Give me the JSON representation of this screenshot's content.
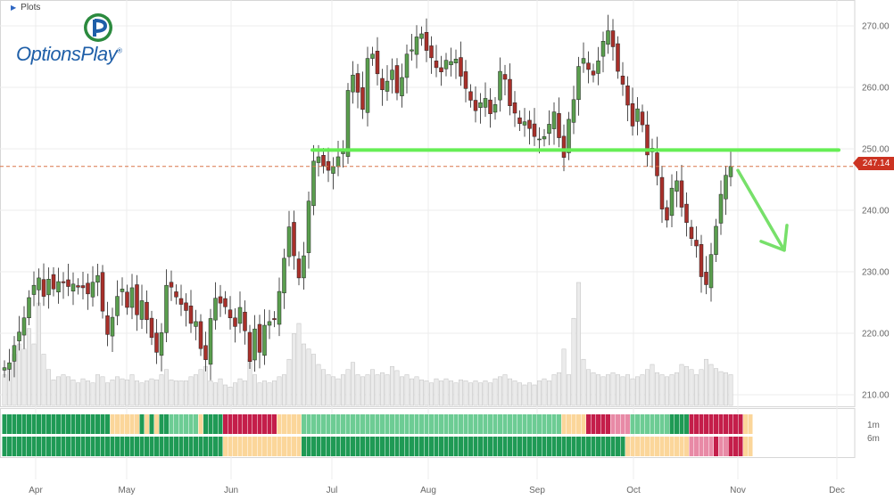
{
  "toolbar": {
    "plots_label": "Plots"
  },
  "logo": {
    "name": "OptionsPlay",
    "registered_mark": "®"
  },
  "current_price_label": "247.14",
  "colors": {
    "up": "#5a9e4e",
    "down": "#a8302a",
    "support_line": "#66ee55",
    "price_line": "#d9774a",
    "arrow": "#77e06a",
    "volume": "#ebebeb",
    "strong_bull": "#1f9a55",
    "bull": "#6dcc94",
    "neutral": "#fbd69a",
    "bear": "#e88aa6",
    "strong_bear": "#c41e4a"
  },
  "chart_data": {
    "type": "candlestick",
    "x_tick_labels": [
      "Apr",
      "May",
      "Jun",
      "Jul",
      "Aug",
      "Sep",
      "Oct",
      "Nov",
      "Dec"
    ],
    "y_ticks": [
      210,
      220,
      230,
      240,
      250,
      260,
      270
    ],
    "y_tick_labels": [
      "210.00",
      "220.00",
      "230.00",
      "240.00",
      "250.00",
      "260.00",
      "270.00"
    ],
    "ylim": [
      208.5,
      272.5
    ],
    "grid": true,
    "last_price": 247.14,
    "resistance_level": 249.8,
    "forecast_arrow": {
      "from_price": 246.5,
      "to_price": 233.5,
      "direction": "down"
    },
    "closes": [
      214.4,
      215.2,
      218.0,
      220.2,
      222.5,
      225.8,
      227.8,
      229.0,
      226.0,
      228.8,
      227.2,
      228.4,
      228.2,
      227.6,
      228.0,
      227.5,
      227.4,
      226.4,
      228.3,
      229.4,
      223.6,
      219.8,
      222.6,
      226.0,
      227.2,
      224.2,
      227.4,
      223.0,
      225.3,
      222.2,
      219.3,
      216.9,
      220.1,
      227.8,
      227.5,
      225.9,
      224.7,
      223.7,
      221.6,
      221.9,
      217.5,
      215.7,
      222.4,
      225.7,
      224.9,
      224.3,
      222.5,
      221.1,
      224.2,
      220.4,
      215.4,
      220.7,
      216.9,
      221.3,
      221.9,
      222.2,
      226.8,
      232.2,
      237.3,
      232.6,
      229.0,
      232.6,
      241.5,
      248.0,
      248.7,
      247.2,
      246.5,
      247.1,
      248.7,
      249.5,
      259.5,
      262.0,
      259.2,
      256.4,
      264.7,
      265.4,
      262.2,
      259.6,
      261.0,
      262.8,
      259.1,
      261.6,
      265.4,
      266.1,
      268.2,
      268.7,
      266.0,
      264.8,
      263.2,
      262.5,
      264.4,
      264.2,
      264.6,
      261.8,
      259.8,
      257.9,
      256.2,
      257.5,
      258.2,
      255.7,
      257.2,
      262.6,
      261.3,
      257.0,
      255.8,
      254.1,
      254.4,
      253.3,
      252.0,
      251.6,
      252.0,
      254.0,
      256.0,
      251.8,
      248.6,
      254.8,
      258.0,
      263.4,
      264.7,
      262.9,
      262.0,
      264.3,
      267.5,
      269.2,
      266.6,
      262.6,
      260.5,
      257.1,
      253.7,
      256.5,
      253.9,
      249.0,
      250.1,
      245.6,
      240.2,
      238.4,
      243.6,
      244.8,
      240.5,
      238.0,
      235.4,
      234.2,
      229.2,
      227.9,
      232.8,
      237.4,
      242.6,
      245.7,
      247.14
    ],
    "volume_relative": [
      0.3,
      0.35,
      0.5,
      0.6,
      0.55,
      0.75,
      0.6,
      1.0,
      0.5,
      0.35,
      0.25,
      0.28,
      0.3,
      0.28,
      0.25,
      0.22,
      0.26,
      0.24,
      0.22,
      0.3,
      0.28,
      0.22,
      0.25,
      0.28,
      0.26,
      0.25,
      0.3,
      0.24,
      0.22,
      0.24,
      0.26,
      0.25,
      0.3,
      0.35,
      0.25,
      0.24,
      0.24,
      0.24,
      0.28,
      0.3,
      0.35,
      0.38,
      0.24,
      0.22,
      0.26,
      0.2,
      0.18,
      0.22,
      0.26,
      0.24,
      0.45,
      0.3,
      0.22,
      0.24,
      0.22,
      0.24,
      0.28,
      0.3,
      0.45,
      0.7,
      0.8,
      0.6,
      0.55,
      0.5,
      0.4,
      0.35,
      0.3,
      0.28,
      0.26,
      0.3,
      0.35,
      0.42,
      0.3,
      0.28,
      0.3,
      0.35,
      0.3,
      0.32,
      0.3,
      0.38,
      0.34,
      0.28,
      0.3,
      0.26,
      0.28,
      0.25,
      0.24,
      0.22,
      0.26,
      0.24,
      0.26,
      0.24,
      0.22,
      0.25,
      0.24,
      0.22,
      0.24,
      0.22,
      0.24,
      0.22,
      0.26,
      0.28,
      0.3,
      0.26,
      0.24,
      0.22,
      0.2,
      0.22,
      0.2,
      0.24,
      0.26,
      0.24,
      0.3,
      0.32,
      0.55,
      0.3,
      0.85,
      1.2,
      0.45,
      0.35,
      0.32,
      0.3,
      0.28,
      0.3,
      0.32,
      0.3,
      0.28,
      0.3,
      0.26,
      0.28,
      0.3,
      0.35,
      0.4,
      0.32,
      0.3,
      0.28,
      0.3,
      0.32,
      0.4,
      0.38,
      0.35,
      0.3,
      0.35,
      0.45,
      0.4,
      0.36,
      0.33,
      0.32,
      0.3
    ],
    "signal_row_labels": [
      "1m",
      "6m"
    ],
    "signal_1m": [
      4,
      4,
      4,
      4,
      4,
      4,
      4,
      4,
      4,
      4,
      4,
      4,
      4,
      4,
      4,
      4,
      4,
      4,
      4,
      4,
      4,
      4,
      2,
      2,
      2,
      2,
      2,
      2,
      4,
      2,
      4,
      2,
      4,
      4,
      3,
      3,
      3,
      3,
      3,
      3,
      2,
      4,
      4,
      4,
      4,
      0,
      0,
      0,
      0,
      0,
      0,
      0,
      0,
      0,
      0,
      0,
      2,
      2,
      2,
      2,
      2,
      3,
      3,
      3,
      3,
      3,
      3,
      3,
      3,
      3,
      3,
      3,
      3,
      3,
      3,
      3,
      3,
      3,
      3,
      3,
      3,
      3,
      3,
      3,
      3,
      3,
      3,
      3,
      3,
      3,
      3,
      3,
      3,
      3,
      3,
      3,
      3,
      3,
      3,
      3,
      3,
      3,
      3,
      3,
      3,
      3,
      3,
      3,
      3,
      3,
      3,
      3,
      3,
      3,
      2,
      2,
      2,
      2,
      2,
      0,
      0,
      0,
      0,
      0,
      1,
      1,
      1,
      1,
      3,
      3,
      3,
      3,
      3,
      3,
      3,
      3,
      4,
      4,
      4,
      4,
      0,
      0,
      0,
      0,
      0,
      0,
      0,
      0,
      0,
      0,
      0,
      2,
      2
    ],
    "signal_6m": [
      4,
      4,
      4,
      4,
      4,
      4,
      4,
      4,
      4,
      4,
      4,
      4,
      4,
      4,
      4,
      4,
      4,
      4,
      4,
      4,
      4,
      4,
      4,
      4,
      4,
      4,
      4,
      4,
      4,
      4,
      4,
      4,
      4,
      4,
      4,
      4,
      4,
      4,
      4,
      4,
      4,
      4,
      4,
      4,
      4,
      2,
      2,
      2,
      2,
      2,
      2,
      2,
      2,
      2,
      2,
      2,
      2,
      2,
      2,
      2,
      2,
      4,
      4,
      4,
      4,
      4,
      4,
      4,
      4,
      4,
      4,
      4,
      4,
      4,
      4,
      4,
      4,
      4,
      4,
      4,
      4,
      4,
      4,
      4,
      4,
      4,
      4,
      4,
      4,
      4,
      4,
      4,
      4,
      4,
      4,
      4,
      4,
      4,
      4,
      4,
      4,
      4,
      4,
      4,
      4,
      4,
      4,
      4,
      4,
      4,
      4,
      4,
      4,
      4,
      4,
      4,
      4,
      4,
      4,
      4,
      4,
      4,
      4,
      4,
      4,
      4,
      4,
      2,
      2,
      2,
      2,
      2,
      2,
      2,
      2,
      2,
      2,
      2,
      2,
      2,
      1,
      1,
      1,
      1,
      1,
      0,
      1,
      1,
      0,
      0,
      0,
      2,
      2
    ]
  }
}
